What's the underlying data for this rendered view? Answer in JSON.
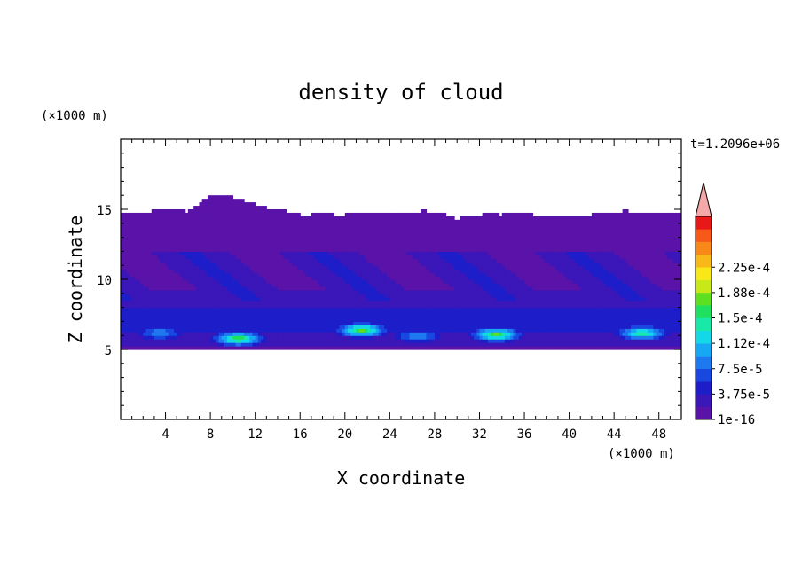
{
  "chart_data": {
    "type": "heatmap",
    "title": "density of cloud",
    "xlabel": "X coordinate",
    "ylabel": "Z coordinate",
    "x_unit": "(×1000 m)",
    "y_unit": "(×1000 m)",
    "time_label": "t=1.2096e+06",
    "xlim": [
      0,
      50
    ],
    "ylim": [
      0,
      20
    ],
    "x_ticks": [
      4,
      8,
      12,
      16,
      20,
      24,
      28,
      32,
      36,
      40,
      44,
      48
    ],
    "y_ticks": [
      5,
      10,
      15
    ],
    "colorbar": {
      "labels": [
        "1e-16",
        "3.75e-5",
        "7.5e-5",
        "1.12e-4",
        "1.5e-4",
        "1.88e-4",
        "2.25e-4"
      ],
      "colors": [
        "#5a13a8",
        "#3b16b8",
        "#1d1ec9",
        "#1848e0",
        "#1e78f0",
        "#17a8f5",
        "#13d8e8",
        "#18e8a8",
        "#20e060",
        "#5ee020",
        "#c8e818",
        "#f8e818",
        "#f8b818",
        "#f88818",
        "#f85818",
        "#e81818"
      ],
      "extend_color": "#f4a8a8"
    },
    "cloud_layer": {
      "base_km": 5.0,
      "top_km": [
        14.8,
        14.8,
        14.8,
        14.9,
        15.0,
        15.0,
        14.8,
        15.4,
        16.0,
        16.1,
        15.9,
        15.6,
        15.4,
        15.1,
        15.0,
        14.8,
        14.6,
        14.6,
        14.8,
        14.6,
        14.6,
        14.8,
        14.8,
        14.7,
        14.8,
        14.6,
        14.8,
        14.9,
        14.8,
        14.6,
        14.3,
        14.6,
        14.6,
        14.7,
        14.6,
        14.8,
        14.7,
        14.6,
        14.6,
        14.6,
        14.6,
        14.6,
        14.6,
        14.8,
        14.8,
        14.9,
        14.8,
        14.8,
        14.8,
        14.6,
        14.8
      ],
      "bright_cells": [
        {
          "x": 10.5,
          "z": 5.8,
          "peak": 9
        },
        {
          "x": 21.5,
          "z": 6.4,
          "peak": 9
        },
        {
          "x": 33.5,
          "z": 6.1,
          "peak": 9
        },
        {
          "x": 46.5,
          "z": 6.2,
          "peak": 8
        },
        {
          "x": 26.5,
          "z": 6.0,
          "peak": 5
        },
        {
          "x": 3.5,
          "z": 6.2,
          "peak": 5
        }
      ]
    }
  }
}
